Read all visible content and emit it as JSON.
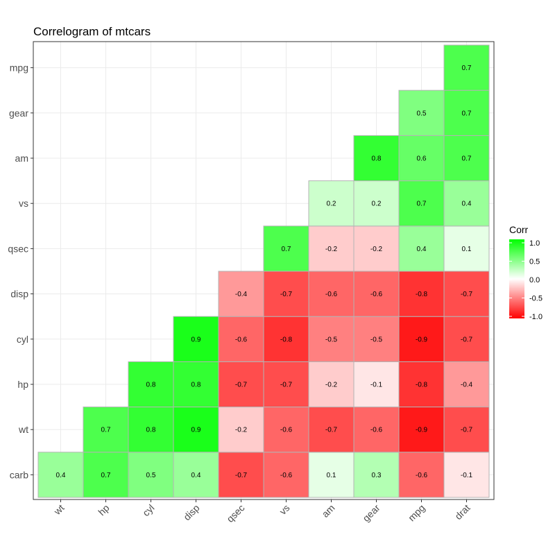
{
  "chart_data": {
    "type": "heatmap",
    "title": "Correlogram of mtcars",
    "x_categories": [
      "wt",
      "hp",
      "cyl",
      "disp",
      "qsec",
      "vs",
      "am",
      "gear",
      "mpg",
      "drat"
    ],
    "y_categories": [
      "carb",
      "wt",
      "hp",
      "cyl",
      "disp",
      "qsec",
      "vs",
      "am",
      "gear",
      "mpg"
    ],
    "cells": [
      {
        "x": "wt",
        "y": "carb",
        "value": 0.4
      },
      {
        "x": "hp",
        "y": "carb",
        "value": 0.7
      },
      {
        "x": "cyl",
        "y": "carb",
        "value": 0.5
      },
      {
        "x": "disp",
        "y": "carb",
        "value": 0.4
      },
      {
        "x": "qsec",
        "y": "carb",
        "value": -0.7
      },
      {
        "x": "vs",
        "y": "carb",
        "value": -0.6
      },
      {
        "x": "am",
        "y": "carb",
        "value": 0.1
      },
      {
        "x": "gear",
        "y": "carb",
        "value": 0.3
      },
      {
        "x": "mpg",
        "y": "carb",
        "value": -0.6
      },
      {
        "x": "drat",
        "y": "carb",
        "value": -0.1
      },
      {
        "x": "hp",
        "y": "wt",
        "value": 0.7
      },
      {
        "x": "cyl",
        "y": "wt",
        "value": 0.8
      },
      {
        "x": "disp",
        "y": "wt",
        "value": 0.9
      },
      {
        "x": "qsec",
        "y": "wt",
        "value": -0.2
      },
      {
        "x": "vs",
        "y": "wt",
        "value": -0.6
      },
      {
        "x": "am",
        "y": "wt",
        "value": -0.7
      },
      {
        "x": "gear",
        "y": "wt",
        "value": -0.6
      },
      {
        "x": "mpg",
        "y": "wt",
        "value": -0.9
      },
      {
        "x": "drat",
        "y": "wt",
        "value": -0.7
      },
      {
        "x": "cyl",
        "y": "hp",
        "value": 0.8
      },
      {
        "x": "disp",
        "y": "hp",
        "value": 0.8
      },
      {
        "x": "qsec",
        "y": "hp",
        "value": -0.7
      },
      {
        "x": "vs",
        "y": "hp",
        "value": -0.7
      },
      {
        "x": "am",
        "y": "hp",
        "value": -0.2
      },
      {
        "x": "gear",
        "y": "hp",
        "value": -0.1
      },
      {
        "x": "mpg",
        "y": "hp",
        "value": -0.8
      },
      {
        "x": "drat",
        "y": "hp",
        "value": -0.4
      },
      {
        "x": "disp",
        "y": "cyl",
        "value": 0.9
      },
      {
        "x": "qsec",
        "y": "cyl",
        "value": -0.6
      },
      {
        "x": "vs",
        "y": "cyl",
        "value": -0.8
      },
      {
        "x": "am",
        "y": "cyl",
        "value": -0.5
      },
      {
        "x": "gear",
        "y": "cyl",
        "value": -0.5
      },
      {
        "x": "mpg",
        "y": "cyl",
        "value": -0.9
      },
      {
        "x": "drat",
        "y": "cyl",
        "value": -0.7
      },
      {
        "x": "qsec",
        "y": "disp",
        "value": -0.4
      },
      {
        "x": "vs",
        "y": "disp",
        "value": -0.7
      },
      {
        "x": "am",
        "y": "disp",
        "value": -0.6
      },
      {
        "x": "gear",
        "y": "disp",
        "value": -0.6
      },
      {
        "x": "mpg",
        "y": "disp",
        "value": -0.8
      },
      {
        "x": "drat",
        "y": "disp",
        "value": -0.7
      },
      {
        "x": "vs",
        "y": "qsec",
        "value": 0.7
      },
      {
        "x": "am",
        "y": "qsec",
        "value": -0.2
      },
      {
        "x": "gear",
        "y": "qsec",
        "value": -0.2
      },
      {
        "x": "mpg",
        "y": "qsec",
        "value": 0.4
      },
      {
        "x": "drat",
        "y": "qsec",
        "value": 0.1
      },
      {
        "x": "am",
        "y": "vs",
        "value": 0.2
      },
      {
        "x": "gear",
        "y": "vs",
        "value": 0.2
      },
      {
        "x": "mpg",
        "y": "vs",
        "value": 0.7
      },
      {
        "x": "drat",
        "y": "vs",
        "value": 0.4
      },
      {
        "x": "gear",
        "y": "am",
        "value": 0.8
      },
      {
        "x": "mpg",
        "y": "am",
        "value": 0.6
      },
      {
        "x": "drat",
        "y": "am",
        "value": 0.7
      },
      {
        "x": "mpg",
        "y": "gear",
        "value": 0.5
      },
      {
        "x": "drat",
        "y": "gear",
        "value": 0.7
      },
      {
        "x": "drat",
        "y": "mpg",
        "value": 0.7
      }
    ],
    "legend": {
      "title": "Corr",
      "placement": "right",
      "ticks": [
        "1.0",
        "0.5",
        "0.0",
        "-0.5",
        "-1.0"
      ],
      "range": [
        -1,
        1
      ]
    },
    "colors": {
      "low": "#ff0000",
      "mid": "#ffffff",
      "high": "#00ff00",
      "cell_border": "#b3b3b3"
    },
    "grid": true
  }
}
